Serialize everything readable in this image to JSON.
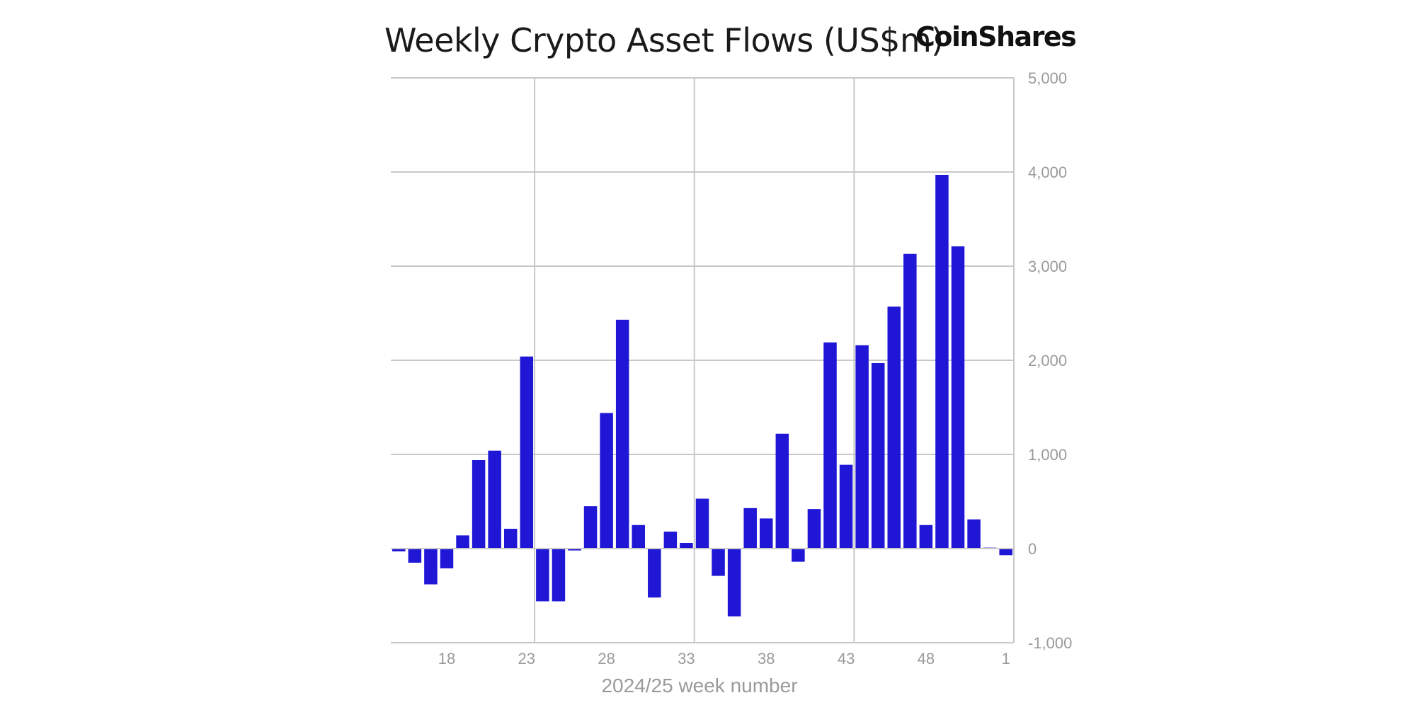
{
  "title": "Weekly Crypto Asset Flows (US$m)",
  "brand": "CoinShares",
  "colors": {
    "bar": "#1f16d6",
    "grid": "#c8c8c8",
    "axis_text": "#9a9a9a"
  },
  "chart_data": {
    "type": "bar",
    "title": "Weekly Crypto Asset Flows (US$m)",
    "xlabel": "2024/25 week number",
    "ylabel": "",
    "ylim": [
      -1000,
      5000
    ],
    "y_ticks": [
      5000,
      4000,
      3000,
      2000,
      1000,
      0,
      -1000
    ],
    "y_tick_labels": [
      "5,000",
      "4,000",
      "3,000",
      "2,000",
      "1,000",
      "0",
      "-1,000"
    ],
    "y_axis_side": "right",
    "x_tick_labels": [
      {
        "label": "18",
        "category": 18
      },
      {
        "label": "23",
        "category": 23
      },
      {
        "label": "28",
        "category": 28
      },
      {
        "label": "33",
        "category": 33
      },
      {
        "label": "38",
        "category": 38
      },
      {
        "label": "43",
        "category": 43
      },
      {
        "label": "48",
        "category": 48
      },
      {
        "label": "1",
        "category": 53
      }
    ],
    "vertical_gridlines_at": [
      23,
      33,
      43
    ],
    "categories": [
      15,
      16,
      17,
      18,
      19,
      20,
      21,
      22,
      23,
      24,
      25,
      26,
      27,
      28,
      29,
      30,
      31,
      32,
      33,
      34,
      35,
      36,
      37,
      38,
      39,
      40,
      41,
      42,
      43,
      44,
      45,
      46,
      47,
      48,
      49,
      50,
      51,
      52,
      53
    ],
    "values": [
      -30,
      -150,
      -380,
      -210,
      140,
      940,
      1040,
      210,
      2040,
      -560,
      -560,
      -20,
      450,
      1440,
      2430,
      250,
      -520,
      180,
      60,
      530,
      -290,
      -720,
      430,
      320,
      1220,
      -140,
      420,
      2190,
      890,
      2160,
      1970,
      2570,
      3130,
      250,
      3970,
      3210,
      310,
      10,
      -70
    ],
    "grid": true
  }
}
